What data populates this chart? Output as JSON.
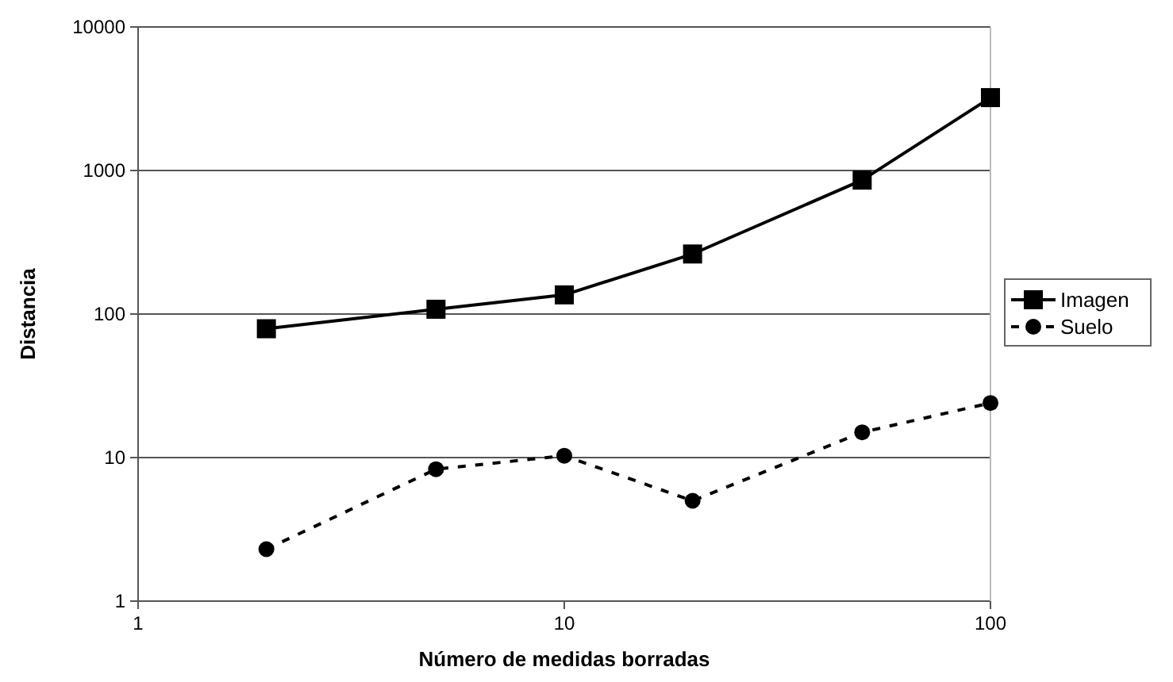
{
  "chart_data": {
    "type": "line",
    "xlabel": "Número de medidas borradas",
    "ylabel": "Distancia",
    "log": "xy",
    "xlim": [
      1,
      100
    ],
    "xticks": [
      1,
      10,
      100
    ],
    "ylim": [
      1,
      10000
    ],
    "yticks": [
      1,
      10,
      100,
      1000,
      10000
    ],
    "grid": "y",
    "legend": "right",
    "x": [
      2,
      5,
      10,
      20,
      50,
      100
    ],
    "series": [
      {
        "name": "Imagen",
        "color": "#000000",
        "marker": "square",
        "line_style": "solid",
        "values": [
          79,
          108,
          136,
          262,
          857,
          3220
        ]
      },
      {
        "name": "Suelo",
        "color": "#000000",
        "marker": "circle",
        "line_style": "dashed",
        "values": [
          2.3,
          8.3,
          10.3,
          5.0,
          15,
          24
        ]
      }
    ]
  }
}
